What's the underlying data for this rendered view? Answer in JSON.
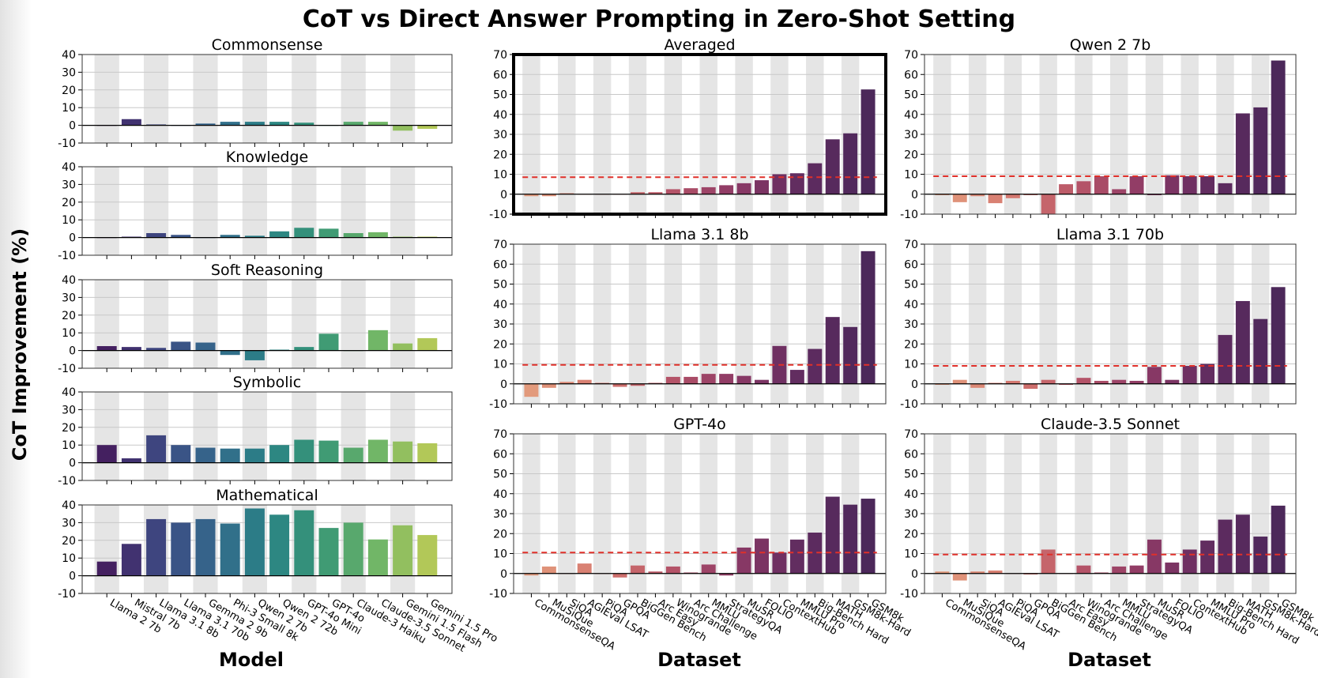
{
  "figure": {
    "title": "CoT vs Direct Answer Prompting in Zero-Shot Setting",
    "ylabel": "CoT Improvement (%)",
    "xlabel_left": "Model",
    "xlabel_mid": "Dataset",
    "xlabel_right": "Dataset"
  },
  "chart_data": [
    {
      "id": "commonsense",
      "type": "bar",
      "title": "Commonsense",
      "categories": [
        "Llama 2 7b",
        "Mistral 7b",
        "Llama 3.1 8b",
        "Llama 3.1 70b",
        "Gemma 2 9b",
        "Phi-3 Small 8k",
        "Qwen 2 7b",
        "Qwen 2 72b",
        "GPT-4o Mini",
        "GPT-4o",
        "Claude-3 Haiku",
        "Claude-3.5 Sonnet",
        "Gemini 1.5 Flash",
        "Gemini 1.5 Pro"
      ],
      "values": [
        0,
        3.5,
        0.5,
        0,
        1,
        2,
        2,
        2,
        1.5,
        0,
        2,
        2,
        -3,
        -2
      ],
      "ylim": [
        -10,
        40
      ],
      "yticks": [
        -10,
        0,
        10,
        20,
        30,
        40
      ]
    },
    {
      "id": "knowledge",
      "type": "bar",
      "title": "Knowledge",
      "categories": [
        "Llama 2 7b",
        "Mistral 7b",
        "Llama 3.1 8b",
        "Llama 3.1 70b",
        "Gemma 2 9b",
        "Phi-3 Small 8k",
        "Qwen 2 7b",
        "Qwen 2 72b",
        "GPT-4o Mini",
        "GPT-4o",
        "Claude-3 Haiku",
        "Claude-3.5 Sonnet",
        "Gemini 1.5 Flash",
        "Gemini 1.5 Pro"
      ],
      "values": [
        0,
        0.5,
        2.5,
        1.5,
        0,
        1.5,
        1,
        3.5,
        5.5,
        5,
        2.5,
        3,
        0.5,
        0.5
      ],
      "ylim": [
        -10,
        40
      ],
      "yticks": [
        -10,
        0,
        10,
        20,
        30,
        40
      ]
    },
    {
      "id": "soft-reasoning",
      "type": "bar",
      "title": "Soft Reasoning",
      "categories": [
        "Llama 2 7b",
        "Mistral 7b",
        "Llama 3.1 8b",
        "Llama 3.1 70b",
        "Gemma 2 9b",
        "Phi-3 Small 8k",
        "Qwen 2 7b",
        "Qwen 2 72b",
        "GPT-4o Mini",
        "GPT-4o",
        "Claude-3 Haiku",
        "Claude-3.5 Sonnet",
        "Gemini 1.5 Flash",
        "Gemini 1.5 Pro"
      ],
      "values": [
        2.5,
        2,
        1.5,
        5,
        4.5,
        -2.5,
        -5.5,
        0.5,
        2,
        9.5,
        0,
        11.5,
        4,
        7
      ],
      "ylim": [
        -10,
        40
      ],
      "yticks": [
        -10,
        0,
        10,
        20,
        30,
        40
      ]
    },
    {
      "id": "symbolic",
      "type": "bar",
      "title": "Symbolic",
      "categories": [
        "Llama 2 7b",
        "Mistral 7b",
        "Llama 3.1 8b",
        "Llama 3.1 70b",
        "Gemma 2 9b",
        "Phi-3 Small 8k",
        "Qwen 2 7b",
        "Qwen 2 72b",
        "GPT-4o Mini",
        "GPT-4o",
        "Claude-3 Haiku",
        "Claude-3.5 Sonnet",
        "Gemini 1.5 Flash",
        "Gemini 1.5 Pro"
      ],
      "values": [
        10,
        2.5,
        15.5,
        10,
        8.5,
        8,
        8,
        10,
        13,
        12.5,
        8.5,
        13,
        12,
        11
      ],
      "ylim": [
        -10,
        40
      ],
      "yticks": [
        -10,
        0,
        10,
        20,
        30,
        40
      ]
    },
    {
      "id": "mathematical",
      "type": "bar",
      "title": "Mathematical",
      "categories": [
        "Llama 2 7b",
        "Mistral 7b",
        "Llama 3.1 8b",
        "Llama 3.1 70b",
        "Gemma 2 9b",
        "Phi-3 Small 8k",
        "Qwen 2 7b",
        "Qwen 2 72b",
        "GPT-4o Mini",
        "GPT-4o",
        "Claude-3 Haiku",
        "Claude-3.5 Sonnet",
        "Gemini 1.5 Flash",
        "Gemini 1.5 Pro"
      ],
      "values": [
        8,
        18,
        32,
        30,
        32,
        29.5,
        38,
        34.5,
        37,
        27,
        30,
        20.5,
        28.5,
        23
      ],
      "ylim": [
        -10,
        40
      ],
      "yticks": [
        -10,
        0,
        10,
        20,
        30,
        40
      ]
    },
    {
      "id": "averaged",
      "type": "bar",
      "title": "Averaged",
      "highlighted": true,
      "categories": [
        "CommonsenseQA",
        "MuSiQue",
        "SiQA",
        "AGIEval LSAT",
        "PiQA",
        "GPQA",
        "BiGGen Bench",
        "Arc Easy",
        "Winogrande",
        "Arc Challenge",
        "MMLU",
        "StrategyQA",
        "MuSR",
        "FOLIO",
        "ContextHub",
        "MMLU Pro",
        "Big-Bench Hard",
        "MATH",
        "GSM8k-Hard",
        "GSM8k"
      ],
      "values": [
        -1,
        -1,
        0.5,
        0,
        0,
        0,
        1,
        1,
        2.5,
        3,
        3.5,
        4.5,
        5.5,
        7,
        10,
        10.5,
        15.5,
        27.5,
        30.5,
        52.5
      ],
      "mean_line": 8.5,
      "ylim": [
        -10,
        70
      ],
      "yticks": [
        -10,
        0,
        10,
        20,
        30,
        40,
        50,
        60,
        70
      ]
    },
    {
      "id": "qwen2-7b",
      "type": "bar",
      "title": "Qwen 2 7b",
      "categories": [
        "CommonsenseQA",
        "MuSiQue",
        "SiQA",
        "AGIEval LSAT",
        "PiQA",
        "GPQA",
        "BiGGen Bench",
        "Arc Easy",
        "Winogrande",
        "Arc Challenge",
        "MMLU",
        "StrategyQA",
        "MuSR",
        "FOLIO",
        "ContextHub",
        "MMLU Pro",
        "Big-Bench Hard",
        "MATH",
        "GSM8k-Hard",
        "GSM8k"
      ],
      "values": [
        -0.5,
        -4,
        -1,
        -4.5,
        -2,
        -0.5,
        -10,
        5,
        6.5,
        9,
        2.5,
        9,
        -0.5,
        9.5,
        9,
        9,
        5.5,
        40.5,
        43.5,
        67
      ],
      "mean_line": 9,
      "ylim": [
        -10,
        70
      ],
      "yticks": [
        -10,
        0,
        10,
        20,
        30,
        40,
        50,
        60,
        70
      ]
    },
    {
      "id": "llama31-8b",
      "type": "bar",
      "title": "Llama 3.1 8b",
      "categories": [
        "CommonsenseQA",
        "MuSiQue",
        "SiQA",
        "AGIEval LSAT",
        "PiQA",
        "GPQA",
        "BiGGen Bench",
        "Arc Easy",
        "Winogrande",
        "Arc Challenge",
        "MMLU",
        "StrategyQA",
        "MuSR",
        "FOLIO",
        "ContextHub",
        "MMLU Pro",
        "Big-Bench Hard",
        "MATH",
        "GSM8k-Hard",
        "GSM8k"
      ],
      "values": [
        -6.5,
        -2,
        1,
        2,
        0.5,
        -1.5,
        -1,
        0.5,
        3.5,
        3.5,
        5,
        5,
        4,
        2,
        19,
        7,
        17.5,
        33.5,
        28.5,
        66.5
      ],
      "mean_line": 9.5,
      "ylim": [
        -10,
        70
      ],
      "yticks": [
        -10,
        0,
        10,
        20,
        30,
        40,
        50,
        60,
        70
      ]
    },
    {
      "id": "llama31-70b",
      "type": "bar",
      "title": "Llama 3.1 70b",
      "categories": [
        "CommonsenseQA",
        "MuSiQue",
        "SiQA",
        "AGIEval LSAT",
        "PiQA",
        "GPQA",
        "BiGGen Bench",
        "Arc Easy",
        "Winogrande",
        "Arc Challenge",
        "MMLU",
        "StrategyQA",
        "MuSR",
        "FOLIO",
        "ContextHub",
        "MMLU Pro",
        "Big-Bench Hard",
        "MATH",
        "GSM8k-Hard",
        "GSM8k"
      ],
      "values": [
        -0.5,
        2,
        -2,
        0.5,
        1.5,
        -2.5,
        2,
        -0.5,
        3,
        1.5,
        2,
        1.5,
        8.5,
        2,
        9,
        10,
        24.5,
        41.5,
        32.5,
        48.5
      ],
      "mean_line": 9,
      "ylim": [
        -10,
        70
      ],
      "yticks": [
        -10,
        0,
        10,
        20,
        30,
        40,
        50,
        60,
        70
      ]
    },
    {
      "id": "gpt-4o",
      "type": "bar",
      "title": "GPT-4o",
      "categories": [
        "CommonsenseQA",
        "MuSiQue",
        "SiQA",
        "AGIEval LSAT",
        "PiQA",
        "GPQA",
        "BiGGen Bench",
        "Arc Easy",
        "Winogrande",
        "Arc Challenge",
        "MMLU",
        "StrategyQA",
        "MuSR",
        "FOLIO",
        "ContextHub",
        "MMLU Pro",
        "Big-Bench Hard",
        "MATH",
        "GSM8k-Hard",
        "GSM8k"
      ],
      "values": [
        -1,
        3.5,
        0,
        5,
        0,
        -2,
        4,
        1,
        3.5,
        0.5,
        4.5,
        -1,
        13,
        17.5,
        10.5,
        17,
        20.5,
        38.5,
        34.5,
        37.5
      ],
      "mean_line": 10.5,
      "ylim": [
        -10,
        70
      ],
      "yticks": [
        -10,
        0,
        10,
        20,
        30,
        40,
        50,
        60,
        70
      ]
    },
    {
      "id": "claude-35-sonnet",
      "type": "bar",
      "title": "Claude-3.5 Sonnet",
      "categories": [
        "CommonsenseQA",
        "MuSiQue",
        "SiQA",
        "AGIEval LSAT",
        "PiQA",
        "GPQA",
        "BiGGen Bench",
        "Arc Easy",
        "Winogrande",
        "Arc Challenge",
        "MMLU",
        "StrategyQA",
        "MuSR",
        "FOLIO",
        "ContextHub",
        "MMLU Pro",
        "Big-Bench Hard",
        "MATH",
        "GSM8k-Hard",
        "GSM8k"
      ],
      "values": [
        1,
        -3.5,
        1,
        1.5,
        0,
        -0.5,
        12,
        0,
        4,
        0.5,
        3.5,
        4,
        17,
        5.5,
        12,
        16.5,
        27,
        29.5,
        18.5,
        34
      ],
      "mean_line": 9.5,
      "ylim": [
        -10,
        70
      ],
      "yticks": [
        -10,
        0,
        10,
        20,
        30,
        40,
        50,
        60,
        70
      ]
    }
  ]
}
